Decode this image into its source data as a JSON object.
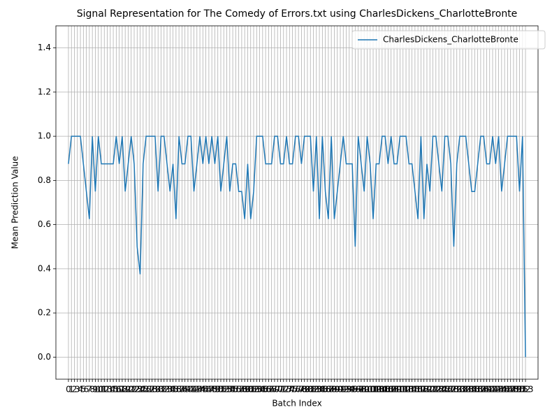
{
  "chart_data": {
    "type": "line",
    "title": "Signal Representation for The Comedy of Errors.txt using CharlesDickens_CharlotteBronte",
    "x_label": "Batch Index",
    "y_label": "Mean Prediction Value",
    "x": [
      0,
      1,
      2,
      3,
      4,
      5,
      6,
      7,
      8,
      9,
      10,
      11,
      12,
      13,
      14,
      15,
      16,
      17,
      18,
      19,
      20,
      21,
      22,
      23,
      24,
      25,
      26,
      27,
      28,
      29,
      30,
      31,
      32,
      33,
      34,
      35,
      36,
      37,
      38,
      39,
      40,
      41,
      42,
      43,
      44,
      45,
      46,
      47,
      48,
      49,
      50,
      51,
      52,
      53,
      54,
      55,
      56,
      57,
      58,
      59,
      60,
      61,
      62,
      63,
      64,
      65,
      66,
      67,
      68,
      69,
      70,
      71,
      72,
      73,
      74,
      75,
      76,
      77,
      78,
      79,
      80,
      81,
      82,
      83,
      84,
      85,
      86,
      87,
      88,
      89,
      90,
      91,
      92,
      93,
      94,
      95,
      96,
      97,
      98,
      99,
      100,
      101,
      102,
      103,
      104,
      105,
      106,
      107,
      108,
      109,
      110,
      111,
      112,
      113,
      114,
      115,
      116,
      117,
      118,
      119,
      120,
      121,
      122,
      123,
      124,
      125,
      126,
      127,
      128,
      129,
      130,
      131,
      132,
      133,
      134,
      135,
      136,
      137,
      138,
      139,
      140,
      141,
      142,
      143,
      144,
      145,
      146,
      147,
      148,
      149,
      150,
      151,
      152,
      153
    ],
    "series": [
      {
        "name": "CharlesDickens_CharlotteBronte",
        "color": "#1f77b4",
        "values": [
          0.875,
          1,
          1,
          1,
          1,
          0.875,
          0.75,
          0.625,
          1,
          0.75,
          1,
          0.875,
          0.875,
          0.875,
          0.875,
          0.875,
          1,
          0.875,
          1,
          0.75,
          0.875,
          1,
          0.875,
          0.5,
          0.375,
          0.875,
          1,
          1,
          1,
          1,
          0.75,
          1,
          1,
          0.875,
          0.75,
          0.875,
          0.625,
          1,
          0.875,
          0.875,
          1,
          1,
          0.75,
          0.875,
          1,
          0.875,
          1,
          0.875,
          1,
          0.875,
          1,
          0.75,
          0.875,
          1,
          0.75,
          0.875,
          0.875,
          0.75,
          0.75,
          0.625,
          0.875,
          0.625,
          0.75,
          1,
          1,
          1,
          0.875,
          0.875,
          0.875,
          1,
          1,
          0.875,
          0.875,
          1,
          0.875,
          0.875,
          1,
          1,
          0.875,
          1,
          1,
          1,
          0.75,
          1,
          0.625,
          1,
          0.75,
          0.625,
          1,
          0.625,
          0.75,
          0.875,
          1,
          0.875,
          0.875,
          0.875,
          0.5,
          1,
          0.875,
          0.75,
          1,
          0.875,
          0.625,
          0.875,
          0.875,
          1,
          1,
          0.875,
          1,
          0.875,
          0.875,
          1,
          1,
          1,
          0.875,
          0.875,
          0.75,
          0.625,
          1,
          0.625,
          0.875,
          0.75,
          1,
          1,
          0.875,
          0.75,
          1,
          1,
          0.875,
          0.5,
          0.875,
          1,
          1,
          1,
          0.875,
          0.75,
          0.75,
          0.875,
          1,
          1,
          0.875,
          0.875,
          1,
          0.875,
          1,
          0.75,
          0.875,
          1,
          1,
          1,
          1,
          0.75,
          1,
          0
        ]
      }
    ],
    "xlim": [
      -4.2,
      157.2
    ],
    "ylim": [
      -0.1,
      1.5
    ],
    "xticks": [
      0,
      1,
      2,
      3,
      4,
      5,
      6,
      7,
      8,
      9,
      10,
      11,
      12,
      13,
      14,
      15,
      16,
      17,
      18,
      19,
      20,
      21,
      22,
      23,
      24,
      25,
      26,
      27,
      28,
      29,
      30,
      31,
      32,
      33,
      34,
      35,
      36,
      37,
      38,
      39,
      40,
      41,
      42,
      43,
      44,
      45,
      46,
      47,
      48,
      49,
      50,
      51,
      52,
      53,
      54,
      55,
      56,
      57,
      58,
      59,
      60,
      61,
      62,
      63,
      64,
      65,
      66,
      67,
      68,
      69,
      70,
      71,
      72,
      73,
      74,
      75,
      76,
      77,
      78,
      79,
      80,
      81,
      82,
      83,
      84,
      85,
      86,
      87,
      88,
      89,
      90,
      91,
      92,
      93,
      94,
      95,
      96,
      97,
      98,
      99,
      100,
      101,
      102,
      103,
      104,
      105,
      106,
      107,
      108,
      109,
      110,
      111,
      112,
      113,
      114,
      115,
      116,
      117,
      118,
      119,
      120,
      121,
      122,
      123,
      124,
      125,
      126,
      127,
      128,
      129,
      130,
      131,
      132,
      133,
      134,
      135,
      136,
      137,
      138,
      139,
      140,
      141,
      142,
      143,
      144,
      145,
      146,
      147,
      148,
      149,
      150,
      151,
      152,
      153
    ],
    "yticks": [
      {
        "value": 0,
        "label": "0.0"
      },
      0.2,
      0.4,
      0.6,
      0.8,
      {
        "value": 1,
        "label": "1.0"
      },
      1.2,
      1.4
    ],
    "grid": true,
    "legend": "upper right"
  }
}
